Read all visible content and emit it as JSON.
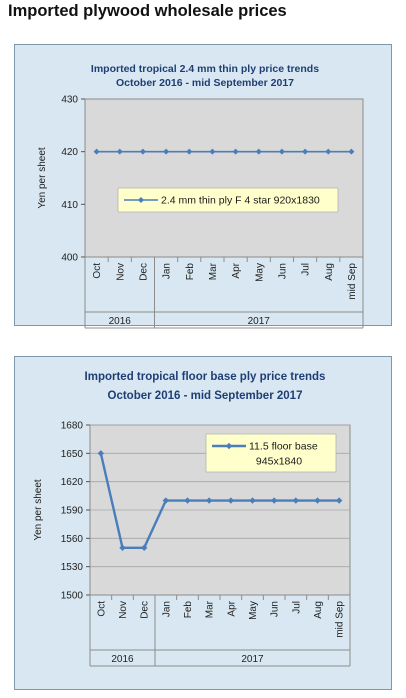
{
  "page": {
    "title": "Imported plywood wholesale prices"
  },
  "chart_data": [
    {
      "type": "line",
      "title": "Imported tropical 2.4 mm thin ply price trends",
      "subtitle": "October 2016 - mid September 2017",
      "ylabel": "Yen per sheet",
      "ylim": [
        400,
        430
      ],
      "yticks": [
        400,
        410,
        420,
        430
      ],
      "categories": [
        "Oct",
        "Nov",
        "Dec",
        "Jan",
        "Feb",
        "Mar",
        "Apr",
        "May",
        "Jun",
        "Jul",
        "Aug",
        "mid Sep"
      ],
      "year_groups": [
        {
          "label": "2016",
          "span": 3
        },
        {
          "label": "2017",
          "span": 9
        }
      ],
      "series": [
        {
          "name": "2.4 mm thin ply F 4 star 920x1830",
          "color": "#4a7ebb",
          "values": [
            420,
            420,
            420,
            420,
            420,
            420,
            420,
            420,
            420,
            420,
            420,
            420
          ]
        }
      ],
      "plot_background": "#d9d9d9",
      "grid": false,
      "legend": "center"
    },
    {
      "type": "line",
      "title": "Imported tropical floor base ply price trends",
      "subtitle": "October 2016 - mid September 2017",
      "ylabel": "Yen per sheet",
      "ylim": [
        1500,
        1680
      ],
      "yticks": [
        1500,
        1530,
        1560,
        1590,
        1620,
        1650,
        1680
      ],
      "categories": [
        "Oct",
        "Nov",
        "Dec",
        "Jan",
        "Feb",
        "Mar",
        "Apr",
        "May",
        "Jun",
        "Jul",
        "Aug",
        "mid Sep"
      ],
      "year_groups": [
        {
          "label": "2016",
          "span": 3
        },
        {
          "label": "2017",
          "span": 9
        }
      ],
      "series": [
        {
          "name": "11.5 floor base 945x1840",
          "color": "#4a7ebb",
          "values": [
            1650,
            1550,
            1550,
            1600,
            1600,
            1600,
            1600,
            1600,
            1600,
            1600,
            1600,
            1600
          ]
        }
      ],
      "plot_background": "#d9d9d9",
      "grid": true,
      "legend": "top-right"
    }
  ]
}
